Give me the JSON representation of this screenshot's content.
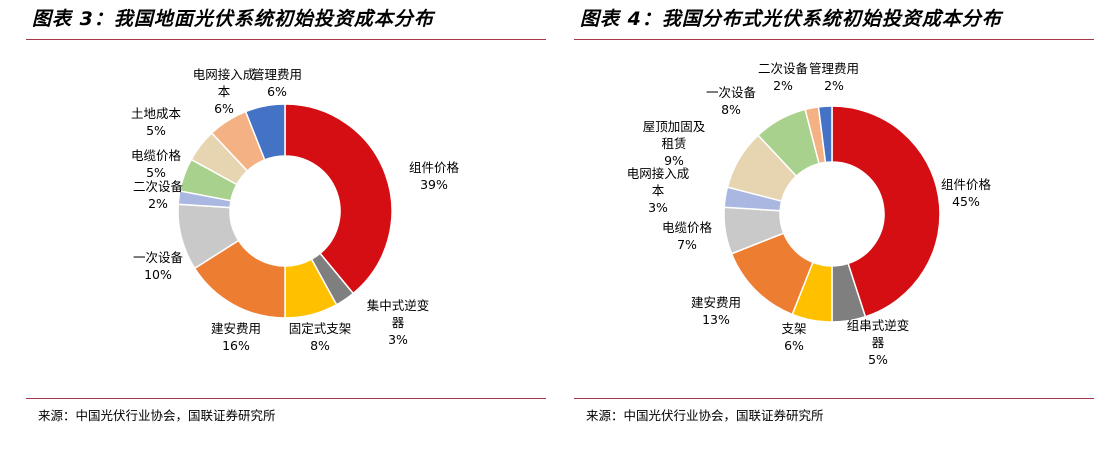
{
  "chart_data": [
    {
      "type": "pie",
      "title": "图表 3：我国地面光伏系统初始投资成本分布",
      "source": "来源：中国光伏行业协会，国联证券研究所",
      "categories": [
        "组件价格",
        "集中式逆变器",
        "固定式支架",
        "建安费用",
        "一次设备",
        "二次设备",
        "电缆价格",
        "土地成本",
        "电网接入成本",
        "管理费用"
      ],
      "label_lines": [
        [
          "组件价格"
        ],
        [
          "集中式逆变",
          "器"
        ],
        [
          "固定式支架"
        ],
        [
          "建安费用"
        ],
        [
          "一次设备"
        ],
        [
          "二次设备"
        ],
        [
          "电缆价格"
        ],
        [
          "土地成本"
        ],
        [
          "电网接入成",
          "本"
        ],
        [
          "管理费用"
        ]
      ],
      "values": [
        39,
        3,
        8,
        16,
        10,
        2,
        5,
        5,
        6,
        6
      ],
      "value_labels": [
        "39%",
        "3%",
        "8%",
        "16%",
        "10%",
        "2%",
        "5%",
        "5%",
        "6%",
        "6%"
      ],
      "colors": [
        "#d40e13",
        "#7f7f7f",
        "#ffc000",
        "#ed7d31",
        "#c9c9c9",
        "#a9b7e1",
        "#a9d18e",
        "#e6d5b0",
        "#f4b183",
        "#4472c4"
      ]
    },
    {
      "type": "pie",
      "title": "图表 4：我国分布式光伏系统初始投资成本分布",
      "source": "来源：中国光伏行业协会，国联证券研究所",
      "categories": [
        "组件价格",
        "组串式逆变器",
        "支架",
        "建安费用",
        "电缆价格",
        "电网接入本",
        "屋顶加固及租赁",
        "一次设备",
        "二次设备",
        "管理费用"
      ],
      "label_lines": [
        [
          "组件价格"
        ],
        [
          "组串式逆变",
          "器"
        ],
        [
          "支架"
        ],
        [
          "建安费用"
        ],
        [
          "电缆价格"
        ],
        [
          "电网接入成",
          "本"
        ],
        [
          "屋顶加固及",
          "租赁"
        ],
        [
          "一次设备"
        ],
        [
          "二次设备"
        ],
        [
          "管理费用"
        ]
      ],
      "values": [
        45,
        5,
        6,
        13,
        7,
        3,
        9,
        8,
        2,
        2
      ],
      "value_labels": [
        "45%",
        "5%",
        "6%",
        "13%",
        "7%",
        "3%",
        "9%",
        "8%",
        "2%",
        "2%"
      ],
      "colors": [
        "#d40e13",
        "#7f7f7f",
        "#ffc000",
        "#ed7d31",
        "#c9c9c9",
        "#a9b7e1",
        "#e6d5b0",
        "#a9d18e",
        "#f4b183",
        "#4472c4"
      ]
    }
  ]
}
